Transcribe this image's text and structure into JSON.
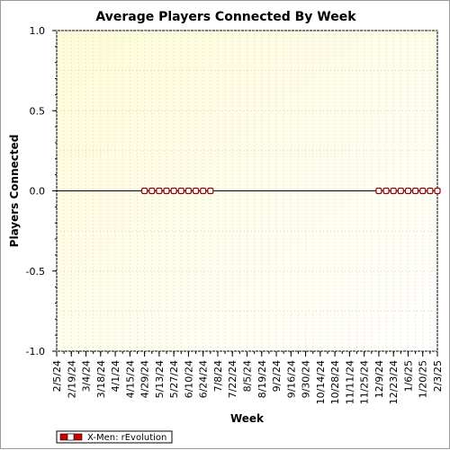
{
  "chart_data": {
    "type": "line",
    "title": "Average Players Connected By Week",
    "xlabel": "Week",
    "ylabel": "Players Connected",
    "ylim": [
      -1.0,
      1.0
    ],
    "yticks": [
      "1.0",
      "0.5",
      "0.0",
      "-0.5",
      "-1.0"
    ],
    "categories": [
      "2/5/24",
      "2/12/24",
      "2/19/24",
      "2/26/24",
      "3/4/24",
      "3/11/24",
      "3/18/24",
      "3/25/24",
      "4/1/24",
      "4/8/24",
      "4/15/24",
      "4/22/24",
      "4/29/24",
      "5/6/24",
      "5/13/24",
      "5/20/24",
      "5/27/24",
      "6/3/24",
      "6/10/24",
      "6/17/24",
      "6/24/24",
      "7/1/24",
      "7/8/24",
      "7/15/24",
      "7/22/24",
      "7/29/24",
      "8/5/24",
      "8/12/24",
      "8/19/24",
      "8/26/24",
      "9/2/24",
      "9/9/24",
      "9/16/24",
      "9/23/24",
      "9/30/24",
      "10/7/24",
      "10/14/24",
      "10/21/24",
      "10/28/24",
      "11/4/24",
      "11/11/24",
      "11/18/24",
      "11/25/24",
      "12/2/24",
      "12/9/24",
      "12/16/24",
      "12/23/24",
      "12/30/24",
      "1/6/25",
      "1/13/25",
      "1/20/25",
      "1/27/25",
      "2/3/25"
    ],
    "labeled_ticks": [
      "2/5/24",
      "2/19/24",
      "3/4/24",
      "3/18/24",
      "4/1/24",
      "4/15/24",
      "4/29/24",
      "5/13/24",
      "5/27/24",
      "6/10/24",
      "6/24/24",
      "7/8/24",
      "7/22/24",
      "8/5/24",
      "8/19/24",
      "9/2/24",
      "9/16/24",
      "9/30/24",
      "10/14/24",
      "10/28/24",
      "11/11/24",
      "11/25/24",
      "12/9/24",
      "12/23/24",
      "1/6/25",
      "1/20/25",
      "2/3/25"
    ],
    "series": [
      {
        "name": "X-Men: rEvolution",
        "color": "#cc0000",
        "x": [
          "4/29/24",
          "5/6/24",
          "5/13/24",
          "5/20/24",
          "5/27/24",
          "6/3/24",
          "6/10/24",
          "6/17/24",
          "6/24/24",
          "7/1/24",
          "12/9/24",
          "12/16/24",
          "12/23/24",
          "12/30/24",
          "1/6/25",
          "1/13/25",
          "1/20/25",
          "1/27/25",
          "2/3/25"
        ],
        "values": [
          0,
          0,
          0,
          0,
          0,
          0,
          0,
          0,
          0,
          0,
          0,
          0,
          0,
          0,
          0,
          0,
          0,
          0,
          0
        ]
      }
    ],
    "grid": true,
    "legend": "bottom-left",
    "plot_background": "#ffffe0"
  }
}
